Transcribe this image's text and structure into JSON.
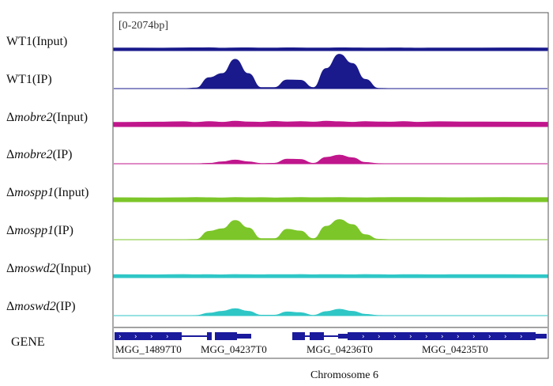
{
  "chart_data": {
    "type": "area",
    "title": "",
    "range_label": "[0-2074bp]",
    "xlabel": "Chromosome 6",
    "ylabel": "",
    "x": [
      0,
      0.1,
      0.16,
      0.19,
      0.22,
      0.25,
      0.28,
      0.31,
      0.34,
      0.37,
      0.4,
      0.43,
      0.46,
      0.49,
      0.52,
      0.55,
      0.58,
      0.61,
      0.64,
      0.67,
      0.7,
      0.75,
      0.8,
      0.9,
      1.0
    ],
    "ylim": [
      0,
      2074
    ],
    "series": [
      {
        "name": "WT1(Input)",
        "name_main": "WT1(Input)",
        "name_italic": "",
        "name_suffix": "",
        "delta": false,
        "color": "#1a1a8c",
        "values": [
          160,
          150,
          165,
          170,
          175,
          150,
          165,
          170,
          155,
          160,
          170,
          165,
          155,
          160,
          170,
          165,
          160,
          155,
          165,
          160,
          150,
          160,
          155,
          165,
          160
        ]
      },
      {
        "name": "WT1(IP)",
        "name_main": "WT1(IP)",
        "name_italic": "",
        "name_suffix": "",
        "delta": false,
        "color": "#1a1a8c",
        "values": [
          0,
          0,
          0,
          40,
          650,
          900,
          1750,
          900,
          60,
          60,
          520,
          500,
          60,
          1200,
          2050,
          1500,
          550,
          20,
          0,
          0,
          0,
          0,
          0,
          0,
          0
        ]
      },
      {
        "name": "Δmobre2(Input)",
        "name_main": "Δ",
        "name_italic": "mobre2",
        "name_suffix": "(Input)",
        "delta": true,
        "color": "#c0168c",
        "values": [
          250,
          270,
          290,
          250,
          300,
          260,
          320,
          280,
          260,
          310,
          280,
          300,
          270,
          320,
          290,
          260,
          300,
          280,
          270,
          300,
          260,
          290,
          280,
          270,
          260
        ]
      },
      {
        "name": "Δmobre2(IP)",
        "name_main": "Δ",
        "name_italic": "mobre2",
        "name_suffix": "(IP)",
        "delta": true,
        "color": "#c0168c",
        "values": [
          0,
          0,
          0,
          0,
          30,
          120,
          220,
          120,
          20,
          30,
          280,
          260,
          30,
          380,
          520,
          360,
          80,
          10,
          0,
          0,
          0,
          0,
          0,
          0,
          0
        ]
      },
      {
        "name": "Δmospp1(Input)",
        "name_main": "Δ",
        "name_italic": "mospp1",
        "name_suffix": "(Input)",
        "delta": true,
        "color": "#7cc629",
        "values": [
          240,
          230,
          240,
          250,
          240,
          230,
          250,
          240,
          245,
          230,
          240,
          250,
          240,
          245,
          250,
          240,
          235,
          245,
          250,
          255,
          250,
          245,
          240,
          250,
          245
        ]
      },
      {
        "name": "Δmospp1(IP)",
        "name_main": "Δ",
        "name_italic": "mospp1",
        "name_suffix": "(IP)",
        "delta": true,
        "color": "#7cc629",
        "values": [
          0,
          0,
          0,
          20,
          500,
          650,
          1150,
          700,
          60,
          60,
          620,
          520,
          60,
          800,
          1200,
          900,
          300,
          30,
          0,
          0,
          0,
          0,
          0,
          0,
          0
        ]
      },
      {
        "name": "Δmoswd2(Input)",
        "name_main": "Δ",
        "name_italic": "moswd2",
        "name_suffix": "(Input)",
        "delta": true,
        "color": "#2fc6c6",
        "values": [
          180,
          170,
          190,
          175,
          185,
          170,
          190,
          180,
          175,
          185,
          180,
          190,
          175,
          185,
          180,
          175,
          190,
          180,
          170,
          185,
          180,
          175,
          185,
          180,
          175
        ]
      },
      {
        "name": "Δmoswd2(IP)",
        "name_main": "Δ",
        "name_italic": "moswd2",
        "name_suffix": "(IP)",
        "delta": true,
        "color": "#2fc6c6",
        "values": [
          0,
          0,
          0,
          10,
          150,
          260,
          420,
          260,
          30,
          30,
          220,
          180,
          20,
          240,
          380,
          260,
          80,
          10,
          0,
          0,
          0,
          0,
          0,
          0,
          0
        ]
      }
    ],
    "gene_track": {
      "label": "GENE",
      "color": "#1a1a9c",
      "genes": [
        "MGG_14897T0",
        "MGG_04237T0",
        "MGG_04236T0",
        "MGG_04235T0"
      ]
    }
  }
}
